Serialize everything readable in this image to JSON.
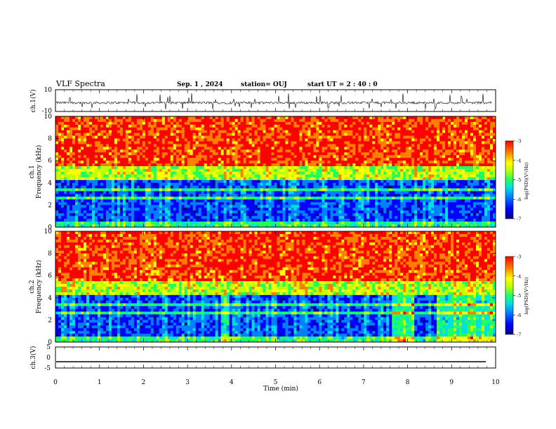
{
  "header": {
    "title": "VLF Spectra",
    "date": "Sep. 1 , 2024",
    "station": "station= OUJ",
    "start": "start  UT =   2 : 40 : 0"
  },
  "colors": {
    "spectrogram": [
      "#00008a",
      "#0000ff",
      "#0080ff",
      "#00e0e0",
      "#20ff60",
      "#c0ff00",
      "#ffff00",
      "#ff8000",
      "#ff0000"
    ],
    "trace": "#000000"
  },
  "chart_data": [
    {
      "type": "line",
      "ylabel": "ch.1(V)",
      "ylim": [
        -10,
        10
      ],
      "yticks": [
        "10",
        "-10"
      ],
      "description_values": {
        "baseline": -2,
        "typical_range": [
          -5,
          1
        ]
      }
    },
    {
      "type": "heatmap",
      "ylabel_channel": "ch.1",
      "ylabel": "Frequency (kHz)",
      "ylim": [
        0,
        10
      ],
      "yticks": [
        "0",
        "2",
        "4",
        "6",
        "8",
        "10"
      ],
      "xlim": [
        0,
        10
      ],
      "colorbar": {
        "label": "log(PSD)(V²/Hz)",
        "range": [
          -7,
          -3
        ],
        "ticks": [
          "-3",
          "-4",
          "-5",
          "-6",
          "-7"
        ]
      }
    },
    {
      "type": "heatmap",
      "ylabel_channel": "ch.2",
      "ylabel": "Frequency (kHz)",
      "ylim": [
        0,
        10
      ],
      "yticks": [
        "0",
        "2",
        "4",
        "6",
        "8",
        "10"
      ],
      "xlim": [
        0,
        10
      ],
      "colorbar": {
        "label": "log(PSD)(V²/Hz)",
        "range": [
          -7,
          -3
        ],
        "ticks": [
          "-3",
          "-4",
          "-5",
          "-6",
          "-7"
        ]
      }
    },
    {
      "type": "line",
      "ylabel": "ch.3(V)",
      "ylim": [
        -5,
        5
      ],
      "yticks": [
        "5",
        "0",
        "-5"
      ],
      "x": [
        0,
        10
      ],
      "y": [
        -2,
        -2
      ]
    }
  ],
  "xaxis": {
    "label": "Time (min)",
    "range": [
      0,
      10
    ],
    "ticks": [
      "0",
      "1",
      "2",
      "3",
      "4",
      "5",
      "6",
      "7",
      "8",
      "9",
      "10"
    ]
  }
}
